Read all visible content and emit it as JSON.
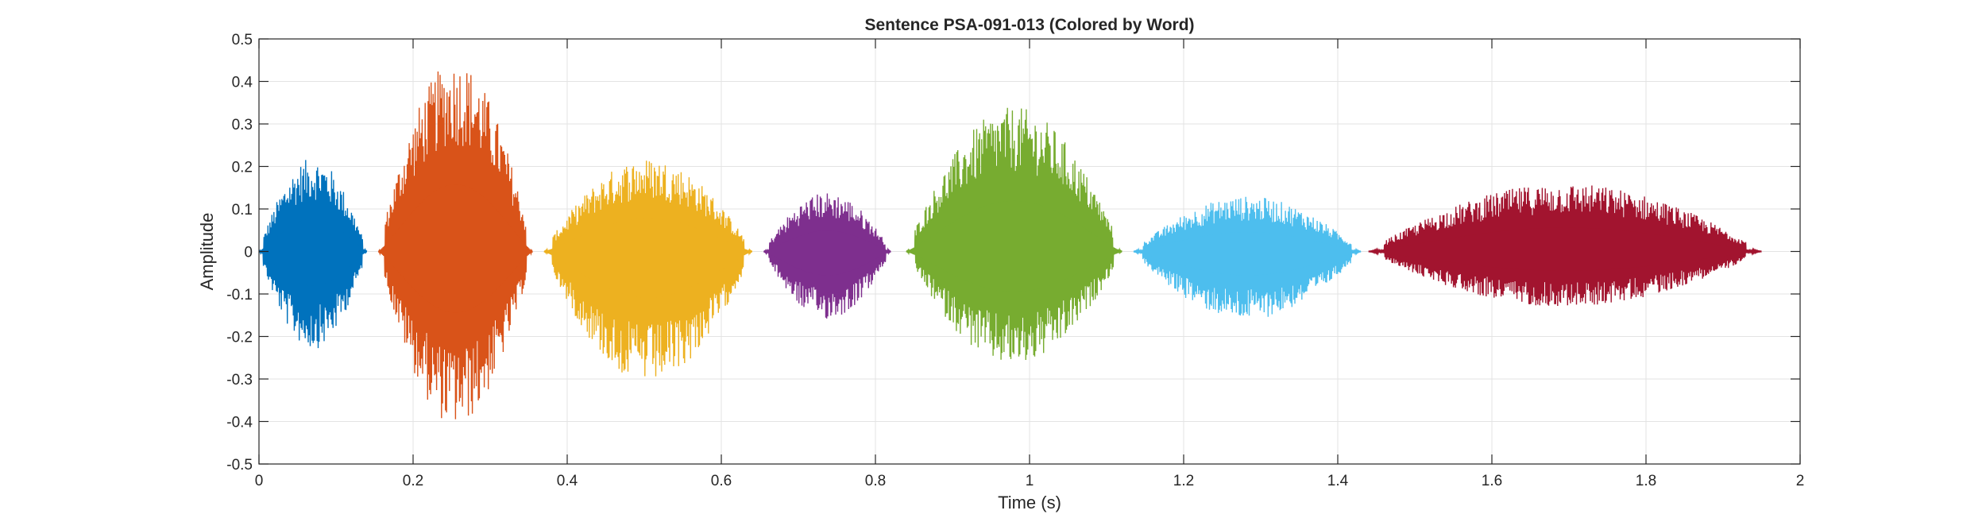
{
  "chart_data": {
    "type": "line",
    "title": "Sentence PSA-091-013 (Colored by Word)",
    "xlabel": "Time (s)",
    "ylabel": "Amplitude",
    "xlim": [
      0,
      2
    ],
    "ylim": [
      -0.5,
      0.5
    ],
    "xticks": [
      0,
      0.2,
      0.4,
      0.6,
      0.8,
      1,
      1.2,
      1.4,
      1.6,
      1.8,
      2
    ],
    "xtick_labels": [
      "0",
      "0.2",
      "0.4",
      "0.6",
      "0.8",
      "1",
      "1.2",
      "1.4",
      "1.6",
      "1.8",
      "2"
    ],
    "yticks": [
      -0.5,
      -0.4,
      -0.3,
      -0.2,
      -0.1,
      0,
      0.1,
      0.2,
      0.3,
      0.4,
      0.5
    ],
    "ytick_labels": [
      "-0.5",
      "-0.4",
      "-0.3",
      "-0.2",
      "-0.1",
      "0",
      "0.1",
      "0.2",
      "0.3",
      "0.4",
      "0.5"
    ],
    "grid": true,
    "series": [
      {
        "color": "#0072BD",
        "t_start": 0.0,
        "t_end": 0.14,
        "max_amplitude": 0.22,
        "min_amplitude": -0.23
      },
      {
        "color": "#D95319",
        "t_start": 0.155,
        "t_end": 0.355,
        "max_amplitude": 0.45,
        "min_amplitude": -0.41
      },
      {
        "color": "#EDB120",
        "t_start": 0.37,
        "t_end": 0.64,
        "max_amplitude": 0.22,
        "min_amplitude": -0.31
      },
      {
        "color": "#7E2F8E",
        "t_start": 0.655,
        "t_end": 0.82,
        "max_amplitude": 0.14,
        "min_amplitude": -0.16
      },
      {
        "color": "#77AC30",
        "t_start": 0.84,
        "t_end": 1.12,
        "max_amplitude": 0.34,
        "min_amplitude": -0.27
      },
      {
        "color": "#4DBEEE",
        "t_start": 1.135,
        "t_end": 1.43,
        "max_amplitude": 0.13,
        "min_amplitude": -0.16
      },
      {
        "color": "#A2142F",
        "t_start": 1.44,
        "t_end": 1.95,
        "max_amplitude": 0.16,
        "min_amplitude": -0.13
      }
    ]
  }
}
